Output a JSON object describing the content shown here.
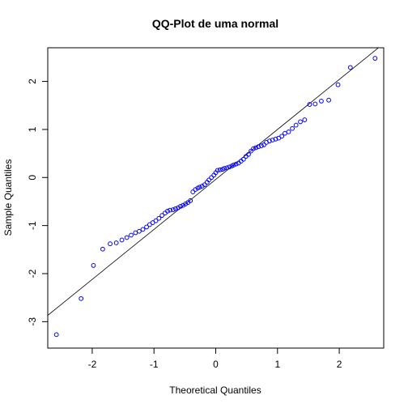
{
  "chart_data": {
    "type": "scatter",
    "title": "QQ-Plot de uma normal",
    "xlabel": "Theoretical Quantiles",
    "ylabel": "Sample Quantiles",
    "xlim": [
      -2.72,
      2.72
    ],
    "ylim": [
      -3.55,
      2.7
    ],
    "xticks": [
      -2,
      -1,
      0,
      1,
      2
    ],
    "yticks": [
      -3,
      -2,
      -1,
      0,
      1,
      2
    ],
    "grid": false,
    "point_color": "#0000ff",
    "line_color": "#000000",
    "reference_line": {
      "intercept": -0.04,
      "slope": 1.04
    },
    "series": [
      {
        "x": [
          -2.58,
          -2.18,
          -1.98,
          -1.83,
          -1.71,
          -1.61,
          -1.52,
          -1.44,
          -1.37,
          -1.3,
          -1.24,
          -1.18,
          -1.12,
          -1.07,
          -1.02,
          -0.97,
          -0.92,
          -0.87,
          -0.82,
          -0.78,
          -0.74,
          -0.69,
          -0.65,
          -0.61,
          -0.57,
          -0.53,
          -0.49,
          -0.45,
          -0.41,
          -0.37,
          -0.33,
          -0.29,
          -0.26,
          -0.22,
          -0.18,
          -0.14,
          -0.11,
          -0.07,
          -0.03,
          0.0,
          0.03,
          0.07,
          0.11,
          0.14,
          0.18,
          0.22,
          0.26,
          0.29,
          0.33,
          0.37,
          0.41,
          0.45,
          0.49,
          0.53,
          0.57,
          0.61,
          0.65,
          0.69,
          0.74,
          0.78,
          0.82,
          0.87,
          0.92,
          0.97,
          1.02,
          1.07,
          1.12,
          1.18,
          1.24,
          1.3,
          1.37,
          1.44,
          1.52,
          1.61,
          1.71,
          1.83,
          1.98,
          2.18,
          2.58
        ],
        "y": [
          -3.27,
          -2.52,
          -1.83,
          -1.49,
          -1.38,
          -1.36,
          -1.3,
          -1.25,
          -1.2,
          -1.15,
          -1.12,
          -1.08,
          -1.03,
          -0.98,
          -0.94,
          -0.9,
          -0.85,
          -0.79,
          -0.74,
          -0.7,
          -0.68,
          -0.67,
          -0.65,
          -0.63,
          -0.6,
          -0.58,
          -0.55,
          -0.52,
          -0.48,
          -0.3,
          -0.25,
          -0.22,
          -0.2,
          -0.18,
          -0.15,
          -0.1,
          -0.05,
          0.0,
          0.05,
          0.1,
          0.15,
          0.16,
          0.17,
          0.19,
          0.2,
          0.22,
          0.24,
          0.26,
          0.28,
          0.3,
          0.34,
          0.38,
          0.44,
          0.48,
          0.55,
          0.6,
          0.62,
          0.64,
          0.66,
          0.68,
          0.73,
          0.76,
          0.78,
          0.8,
          0.82,
          0.86,
          0.92,
          0.95,
          1.02,
          1.09,
          1.16,
          1.2,
          1.52,
          1.53,
          1.59,
          1.61,
          1.93,
          2.29,
          2.48
        ]
      }
    ]
  }
}
